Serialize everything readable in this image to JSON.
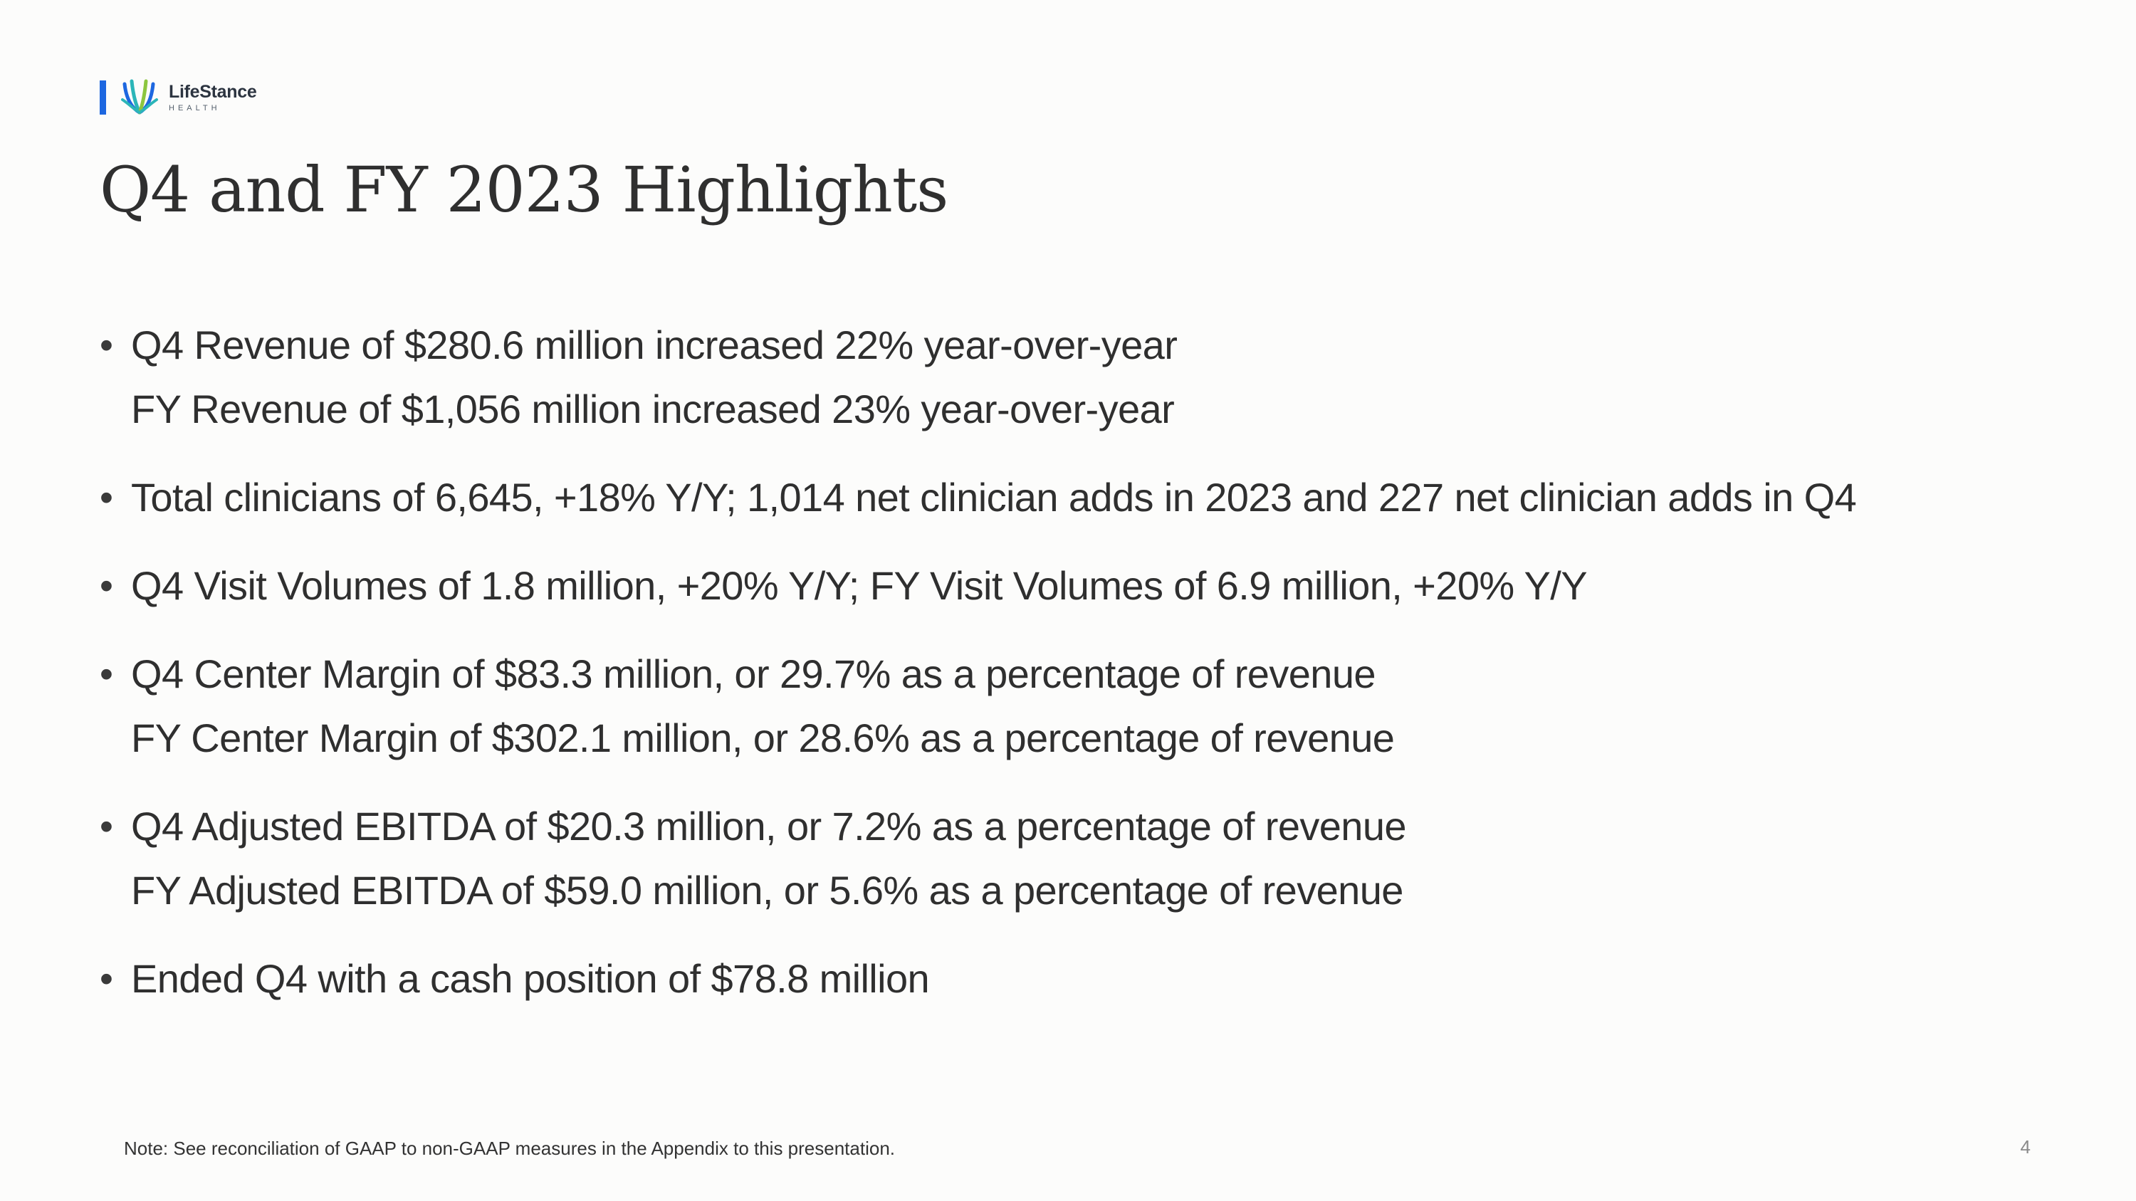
{
  "logo": {
    "name": "LifeStance",
    "subtitle": "HEALTH",
    "colors": {
      "bar": "#1d67e0",
      "leaf_blue": "#1d67e0",
      "leaf_teal": "#2bb5b8",
      "leaf_green": "#8cc63f"
    }
  },
  "slide": {
    "title": "Q4 and FY 2023 Highlights",
    "bullet_symbol": "•",
    "bullets": [
      {
        "lines": [
          "Q4 Revenue of $280.6 million increased 22% year-over-year",
          "FY Revenue of $1,056 million increased 23% year-over-year"
        ]
      },
      {
        "lines": [
          "Total clinicians of 6,645, +18% Y/Y; 1,014 net clinician adds in 2023 and 227 net clinician adds in Q4"
        ]
      },
      {
        "lines": [
          "Q4 Visit Volumes of 1.8 million, +20% Y/Y; FY Visit Volumes of 6.9 million, +20% Y/Y"
        ]
      },
      {
        "lines": [
          "Q4 Center Margin of $83.3 million, or 29.7% as a percentage of revenue",
          "FY Center Margin of $302.1 million, or 28.6% as a percentage of revenue"
        ]
      },
      {
        "lines": [
          "Q4 Adjusted EBITDA of $20.3 million, or 7.2% as a percentage of revenue",
          "FY Adjusted EBITDA of $59.0 million, or 5.6% as a percentage of revenue"
        ]
      },
      {
        "lines": [
          "Ended Q4 with a cash position of $78.8 million"
        ]
      }
    ],
    "note": "Note:  See reconciliation of GAAP to non-GAAP measures in the Appendix to this presentation.",
    "page_number": "4"
  }
}
